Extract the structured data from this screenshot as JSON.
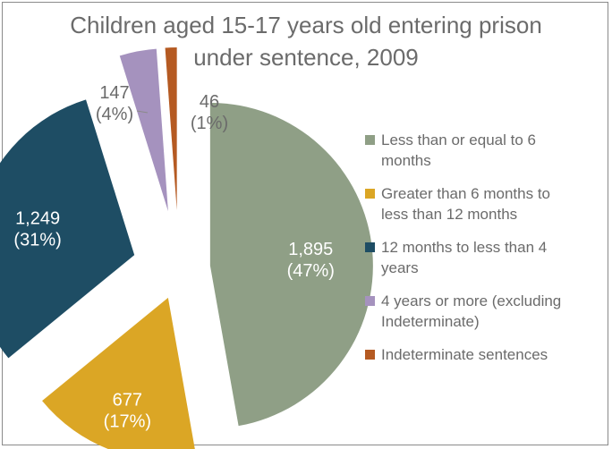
{
  "chart_data": {
    "type": "pie",
    "title": "Children aged 15-17 years old entering prison under sentence, 2009",
    "title_lines": [
      "Children aged 15-17 years old entering prison",
      "under sentence, 2009"
    ],
    "legend_position": "right",
    "slices": [
      {
        "category": "Less than or equal to 6 months",
        "value": 1895,
        "value_label": "1,895",
        "percent_label": "(47%)",
        "color": "#8f9f86"
      },
      {
        "category": "Greater than 6 months to less than 12 months",
        "value": 677,
        "value_label": "677",
        "percent_label": "(17%)",
        "color": "#dba625"
      },
      {
        "category": "12 months to less than 4 years",
        "value": 1249,
        "value_label": "1,249",
        "percent_label": "(31%)",
        "color": "#1e4d64"
      },
      {
        "category": "4 years or more (excluding Indeterminate)",
        "value": 147,
        "value_label": "147",
        "percent_label": "(4%)",
        "color": "#a592be"
      },
      {
        "category": "Indeterminate sentences",
        "value": 46,
        "value_label": "46",
        "percent_label": "(1%)",
        "color": "#b55a22"
      }
    ],
    "legend": [
      {
        "lines": [
          "Less than or equal to 6",
          "months"
        ]
      },
      {
        "lines": [
          "Greater than 6 months to",
          "less than 12 months"
        ]
      },
      {
        "lines": [
          "12 months to less than 4",
          "years"
        ]
      },
      {
        "lines": [
          "4 years or more (excluding",
          "Indeterminate)"
        ]
      },
      {
        "lines": [
          "Indeterminate sentences"
        ]
      }
    ]
  }
}
